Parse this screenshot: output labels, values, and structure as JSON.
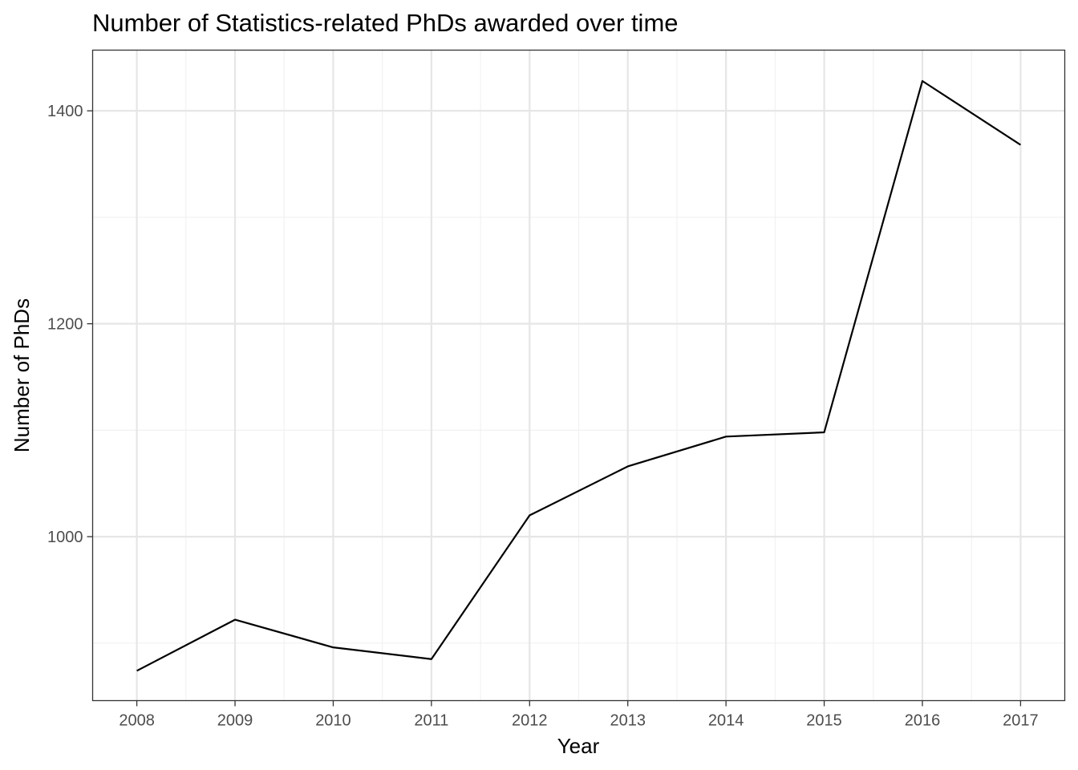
{
  "chart_data": {
    "type": "line",
    "title": "Number of Statistics-related PhDs awarded over time",
    "xlabel": "Year",
    "ylabel": "Number of PhDs",
    "x": [
      2008,
      2009,
      2010,
      2011,
      2012,
      2013,
      2014,
      2015,
      2016,
      2017
    ],
    "series": [
      {
        "values": [
          874,
          922,
          896,
          885,
          1020,
          1066,
          1094,
          1098,
          1428,
          1368
        ],
        "color": "#000000"
      }
    ],
    "xlim": [
      2007.55,
      2017.45
    ],
    "ylim": [
      846,
      1457
    ],
    "x_ticks": [
      2008,
      2009,
      2010,
      2011,
      2012,
      2013,
      2014,
      2015,
      2016,
      2017
    ],
    "y_ticks": [
      1000,
      1200,
      1400
    ],
    "grid": true,
    "legend": "none"
  }
}
